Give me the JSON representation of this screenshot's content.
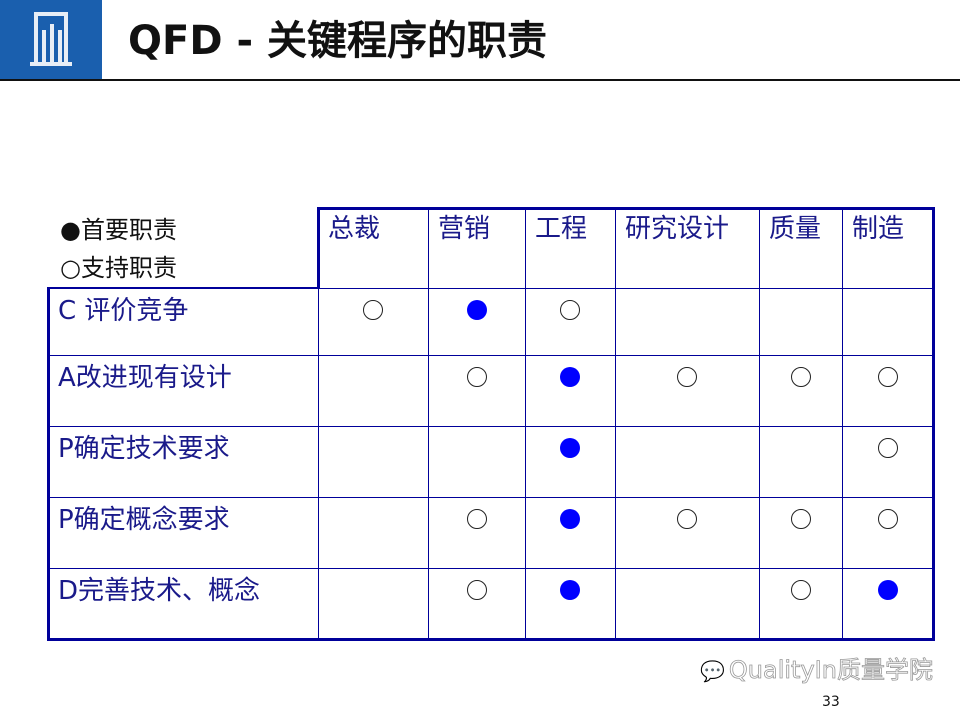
{
  "header": {
    "title": "QFD - 关键程序的职责"
  },
  "legend": {
    "primary": "●首要职责",
    "support": "○支持职责"
  },
  "table": {
    "columns": [
      "总裁",
      "营销",
      "工程",
      "研究设计",
      "质量",
      "制造"
    ],
    "rows": [
      {
        "label": "C 评价竞争",
        "marks": [
          "support",
          "primary",
          "support",
          "",
          "",
          ""
        ]
      },
      {
        "label": "A改进现有设计",
        "marks": [
          "",
          "support",
          "primary",
          "support",
          "support",
          "support"
        ]
      },
      {
        "label": "P确定技术要求",
        "marks": [
          "",
          "",
          "primary",
          "",
          "",
          "support"
        ]
      },
      {
        "label": "P确定概念要求",
        "marks": [
          "",
          "support",
          "primary",
          "support",
          "support",
          "support"
        ]
      },
      {
        "label": "D完善技术、概念",
        "marks": [
          "",
          "support",
          "primary",
          "",
          "support",
          "primary"
        ]
      }
    ]
  },
  "colors": {
    "primary": "#0000ff",
    "border": "#00009a",
    "logo_bg": "#1a5fae"
  },
  "watermark": "QualityIn质量学院",
  "page_number": "33"
}
